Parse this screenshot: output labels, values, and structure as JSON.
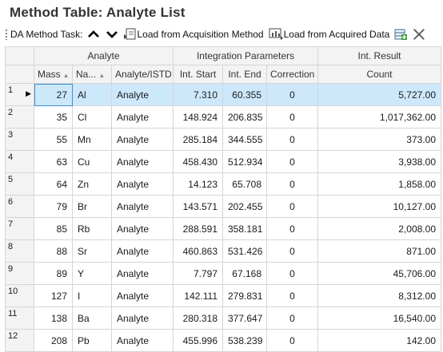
{
  "title": "Method Table: Analyte List",
  "toolbar": {
    "task_label": "DA Method Task:",
    "load_acq_method": "Load from Acquisition Method",
    "load_acq_data": "Load from Acquired Data"
  },
  "groups": {
    "analyte": "Analyte",
    "integration": "Integration Parameters",
    "result": "Int. Result"
  },
  "columns": {
    "mass": "Mass",
    "name": "Na...",
    "type": "Analyte/ISTD",
    "start": "Int. Start",
    "end": "Int. End",
    "corr": "Correction",
    "count": "Count"
  },
  "rows": [
    {
      "n": "1",
      "mass": "27",
      "name": "Al",
      "type": "Analyte",
      "start": "7.310",
      "end": "60.355",
      "corr": "0",
      "count": "5,727.00"
    },
    {
      "n": "2",
      "mass": "35",
      "name": "Cl",
      "type": "Analyte",
      "start": "148.924",
      "end": "206.835",
      "corr": "0",
      "count": "1,017,362.00"
    },
    {
      "n": "3",
      "mass": "55",
      "name": "Mn",
      "type": "Analyte",
      "start": "285.184",
      "end": "344.555",
      "corr": "0",
      "count": "373.00"
    },
    {
      "n": "4",
      "mass": "63",
      "name": "Cu",
      "type": "Analyte",
      "start": "458.430",
      "end": "512.934",
      "corr": "0",
      "count": "3,938.00"
    },
    {
      "n": "5",
      "mass": "64",
      "name": "Zn",
      "type": "Analyte",
      "start": "14.123",
      "end": "65.708",
      "corr": "0",
      "count": "1,858.00"
    },
    {
      "n": "6",
      "mass": "79",
      "name": "Br",
      "type": "Analyte",
      "start": "143.571",
      "end": "202.455",
      "corr": "0",
      "count": "10,127.00"
    },
    {
      "n": "7",
      "mass": "85",
      "name": "Rb",
      "type": "Analyte",
      "start": "288.591",
      "end": "358.181",
      "corr": "0",
      "count": "2,008.00"
    },
    {
      "n": "8",
      "mass": "88",
      "name": "Sr",
      "type": "Analyte",
      "start": "460.863",
      "end": "531.426",
      "corr": "0",
      "count": "871.00"
    },
    {
      "n": "9",
      "mass": "89",
      "name": "Y",
      "type": "Analyte",
      "start": "7.797",
      "end": "67.168",
      "corr": "0",
      "count": "45,706.00"
    },
    {
      "n": "10",
      "mass": "127",
      "name": "I",
      "type": "Analyte",
      "start": "142.111",
      "end": "279.831",
      "corr": "0",
      "count": "8,312.00"
    },
    {
      "n": "11",
      "mass": "138",
      "name": "Ba",
      "type": "Analyte",
      "start": "280.318",
      "end": "377.647",
      "corr": "0",
      "count": "16,540.00"
    },
    {
      "n": "12",
      "mass": "208",
      "name": "Pb",
      "type": "Analyte",
      "start": "455.996",
      "end": "538.239",
      "corr": "0",
      "count": "142.00"
    }
  ],
  "selected_row": 0
}
